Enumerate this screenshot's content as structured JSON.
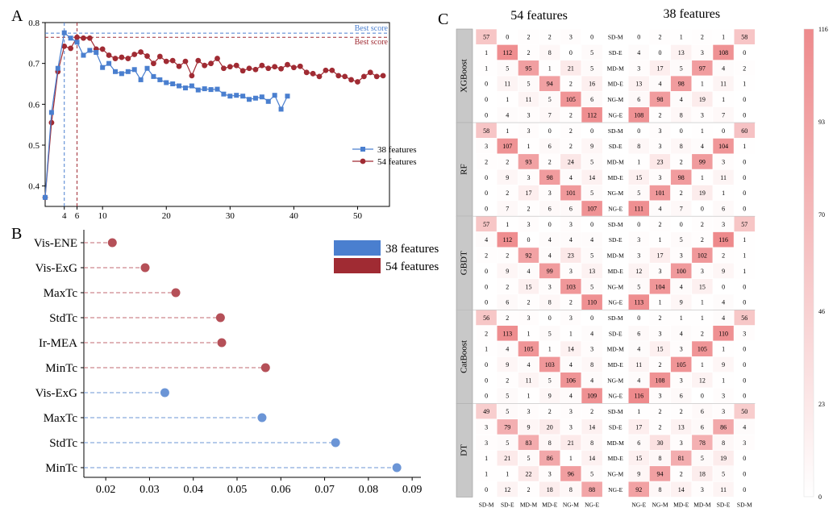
{
  "panels": {
    "A": "A",
    "B": "B",
    "C": "C"
  },
  "colors": {
    "blue": "#4a7fcf",
    "red": "#a02b33",
    "blue_dot": "#6b95d6",
    "red_dot": "#b55058",
    "heat_low": "#ffffff",
    "heat_high": "#ee8a8c",
    "group_bar": "#c8c8c8"
  },
  "chart_data": [
    {
      "id": "A",
      "type": "line",
      "xlim": [
        1,
        55
      ],
      "ylim": [
        0.35,
        0.8
      ],
      "xticks": [
        4,
        6,
        10,
        20,
        30,
        40,
        50
      ],
      "yticks": [
        0.4,
        0.5,
        0.6,
        0.7,
        0.8
      ],
      "best_lines": [
        {
          "label": "Best score",
          "x": 4,
          "y": 0.774,
          "color": "#4a7fcf"
        },
        {
          "label": "Best score",
          "x": 6,
          "y": 0.764,
          "color": "#a02b33"
        }
      ],
      "series": [
        {
          "name": "38 features",
          "color": "#4a7fcf",
          "marker": "square",
          "values": [
            0.372,
            0.58,
            0.688,
            0.775,
            0.762,
            0.752,
            0.72,
            0.732,
            0.727,
            0.69,
            0.7,
            0.68,
            0.675,
            0.68,
            0.685,
            0.66,
            0.688,
            0.668,
            0.66,
            0.653,
            0.65,
            0.645,
            0.64,
            0.645,
            0.635,
            0.638,
            0.636,
            0.637,
            0.625,
            0.62,
            0.622,
            0.62,
            0.612,
            0.615,
            0.618,
            0.607,
            0.622,
            0.588,
            0.62
          ]
        },
        {
          "name": "54 features",
          "color": "#a02b33",
          "marker": "circle",
          "values": [
            0.372,
            0.555,
            0.68,
            0.742,
            0.737,
            0.764,
            0.762,
            0.762,
            0.735,
            0.735,
            0.72,
            0.712,
            0.715,
            0.712,
            0.722,
            0.728,
            0.718,
            0.7,
            0.717,
            0.705,
            0.707,
            0.693,
            0.705,
            0.67,
            0.707,
            0.695,
            0.7,
            0.712,
            0.688,
            0.692,
            0.695,
            0.682,
            0.688,
            0.685,
            0.695,
            0.688,
            0.692,
            0.687,
            0.697,
            0.69,
            0.693,
            0.678,
            0.675,
            0.668,
            0.683,
            0.683,
            0.67,
            0.668,
            0.66,
            0.655,
            0.668,
            0.678,
            0.668,
            0.67
          ]
        }
      ]
    },
    {
      "id": "B",
      "type": "scatter",
      "xlim": [
        0.015,
        0.092
      ],
      "xticks": [
        0.02,
        0.03,
        0.04,
        0.05,
        0.06,
        0.07,
        0.08,
        0.09
      ],
      "legend": [
        {
          "name": "38 features",
          "color": "#4a7fcf"
        },
        {
          "name": "54 features",
          "color": "#a02b33"
        }
      ],
      "items": [
        {
          "label": "Vis-ENE",
          "value": 0.0215,
          "series": "54 features"
        },
        {
          "label": "Vis-ExG",
          "value": 0.029,
          "series": "54 features"
        },
        {
          "label": "MaxTc",
          "value": 0.036,
          "series": "54 features"
        },
        {
          "label": "StdTc",
          "value": 0.0462,
          "series": "54 features"
        },
        {
          "label": "Ir-MEA",
          "value": 0.0465,
          "series": "54 features"
        },
        {
          "label": "MinTc",
          "value": 0.0565,
          "series": "54 features"
        },
        {
          "label": "Vis-ExG",
          "value": 0.0335,
          "series": "38 features"
        },
        {
          "label": "MaxTc",
          "value": 0.0557,
          "series": "38 features"
        },
        {
          "label": "StdTc",
          "value": 0.0725,
          "series": "38 features"
        },
        {
          "label": "MinTc",
          "value": 0.0865,
          "series": "38 features"
        }
      ]
    },
    {
      "id": "C",
      "type": "heatmap",
      "titles": [
        "54 features",
        "38 features"
      ],
      "vmin": 0,
      "vmax": 116,
      "colorbar_ticks": [
        116,
        93,
        70,
        46,
        23,
        0
      ],
      "left_bottom_labels": [
        "SD-M",
        "SD-E",
        "MD-M",
        "MD-E",
        "NG-M",
        "NG-E"
      ],
      "right_bottom_labels": [
        "NG-E",
        "NG-M",
        "MD-E",
        "MD-M",
        "SD-E",
        "SD-M"
      ],
      "mid_row_labels": [
        "SD-M",
        "SD-E",
        "MD-M",
        "MD-E",
        "NG-M",
        "NG-E"
      ],
      "groups": [
        {
          "name": "XGBoost",
          "left": [
            [
              57,
              0,
              2,
              2,
              3,
              0
            ],
            [
              1,
              112,
              2,
              8,
              0,
              5
            ],
            [
              1,
              5,
              95,
              1,
              21,
              5
            ],
            [
              0,
              11,
              5,
              94,
              2,
              16
            ],
            [
              0,
              1,
              11,
              5,
              105,
              6
            ],
            [
              0,
              4,
              3,
              7,
              2,
              112
            ]
          ],
          "right": [
            [
              0,
              2,
              1,
              2,
              1,
              58
            ],
            [
              4,
              0,
              13,
              3,
              108,
              0
            ],
            [
              3,
              17,
              5,
              97,
              4,
              2
            ],
            [
              13,
              4,
              98,
              1,
              11,
              1
            ],
            [
              6,
              98,
              4,
              19,
              1,
              0
            ],
            [
              108,
              2,
              8,
              3,
              7,
              0
            ]
          ]
        },
        {
          "name": "RF",
          "left": [
            [
              58,
              1,
              3,
              0,
              2,
              0
            ],
            [
              3,
              107,
              1,
              6,
              2,
              9
            ],
            [
              2,
              2,
              93,
              2,
              24,
              5
            ],
            [
              0,
              9,
              3,
              98,
              4,
              14
            ],
            [
              0,
              2,
              17,
              3,
              101,
              5
            ],
            [
              0,
              7,
              2,
              6,
              6,
              107
            ]
          ],
          "right": [
            [
              0,
              3,
              0,
              1,
              0,
              60
            ],
            [
              8,
              3,
              8,
              4,
              104,
              1
            ],
            [
              1,
              23,
              2,
              99,
              3,
              0
            ],
            [
              15,
              3,
              98,
              1,
              11,
              0
            ],
            [
              5,
              101,
              2,
              19,
              1,
              0
            ],
            [
              111,
              4,
              7,
              0,
              6,
              0
            ]
          ]
        },
        {
          "name": "GBDT",
          "left": [
            [
              57,
              1,
              3,
              0,
              3,
              0
            ],
            [
              4,
              112,
              0,
              4,
              4,
              4
            ],
            [
              2,
              2,
              92,
              4,
              23,
              5
            ],
            [
              0,
              9,
              4,
              99,
              3,
              13
            ],
            [
              0,
              2,
              15,
              3,
              103,
              5
            ],
            [
              0,
              6,
              2,
              8,
              2,
              110
            ]
          ],
          "right": [
            [
              0,
              2,
              0,
              2,
              3,
              57
            ],
            [
              3,
              1,
              5,
              2,
              116,
              1
            ],
            [
              3,
              17,
              3,
              102,
              2,
              1
            ],
            [
              12,
              3,
              100,
              3,
              9,
              1
            ],
            [
              5,
              104,
              4,
              15,
              0,
              0
            ],
            [
              113,
              1,
              9,
              1,
              4,
              0
            ]
          ]
        },
        {
          "name": "CatBoost",
          "left": [
            [
              56,
              2,
              3,
              0,
              3,
              0
            ],
            [
              2,
              113,
              1,
              5,
              1,
              4
            ],
            [
              1,
              4,
              105,
              1,
              14,
              3
            ],
            [
              0,
              9,
              4,
              103,
              4,
              8
            ],
            [
              0,
              2,
              11,
              5,
              106,
              4
            ],
            [
              0,
              5,
              1,
              9,
              4,
              109
            ]
          ],
          "right": [
            [
              0,
              2,
              1,
              1,
              4,
              56
            ],
            [
              6,
              3,
              4,
              2,
              110,
              3
            ],
            [
              4,
              15,
              3,
              105,
              1,
              0
            ],
            [
              11,
              2,
              105,
              1,
              9,
              0
            ],
            [
              4,
              108,
              3,
              12,
              1,
              0
            ],
            [
              116,
              3,
              6,
              0,
              3,
              0
            ]
          ]
        },
        {
          "name": "DT",
          "left": [
            [
              49,
              5,
              3,
              2,
              3,
              2
            ],
            [
              3,
              79,
              9,
              20,
              3,
              14
            ],
            [
              3,
              5,
              83,
              8,
              21,
              8
            ],
            [
              1,
              21,
              5,
              86,
              1,
              14
            ],
            [
              1,
              1,
              22,
              3,
              96,
              5
            ],
            [
              0,
              12,
              2,
              18,
              8,
              88
            ]
          ],
          "right": [
            [
              1,
              2,
              2,
              6,
              3,
              50
            ],
            [
              17,
              2,
              13,
              6,
              86,
              4
            ],
            [
              6,
              30,
              3,
              78,
              8,
              3
            ],
            [
              15,
              8,
              81,
              5,
              19,
              0
            ],
            [
              9,
              94,
              2,
              18,
              5,
              0
            ],
            [
              92,
              8,
              14,
              3,
              11,
              0
            ]
          ]
        }
      ]
    }
  ]
}
